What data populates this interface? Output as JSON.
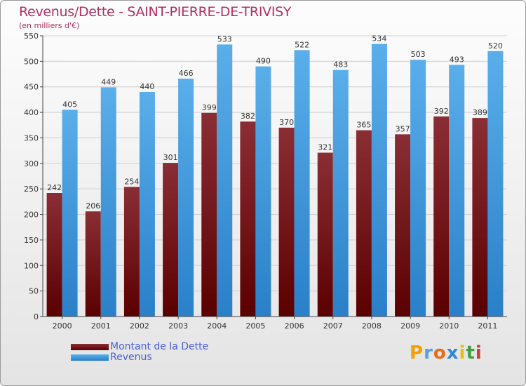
{
  "header": {
    "title": "Revenus/Dette - SAINT-PIERRE-DE-TRIVISY",
    "subtitle": "(en milliers d'€)"
  },
  "colors": {
    "debt_top": "#8a2e35",
    "debt_bottom": "#5a0000",
    "revenue_top": "#5aaeea",
    "revenue_bottom": "#2a80c8",
    "title": "#b03060",
    "legend_text": "#4a5fd4"
  },
  "legend": {
    "debt_label": "Montant de la Dette",
    "revenue_label": "Revenus"
  },
  "logo": {
    "letters": [
      "P",
      "r",
      "o",
      "x",
      "i",
      "t",
      "i"
    ],
    "colors": [
      "#f0a000",
      "#5aa0d8",
      "#e86b1a",
      "#2e8ad8",
      "#e8c000",
      "#3fa040",
      "#d83a30"
    ]
  },
  "chart_data": {
    "type": "bar",
    "title": "Revenus/Dette - SAINT-PIERRE-DE-TRIVISY",
    "ylabel": "(en milliers d'€)",
    "xlabel": "",
    "ylim": [
      0,
      550
    ],
    "yticks": [
      0,
      50,
      100,
      150,
      200,
      250,
      300,
      350,
      400,
      450,
      500,
      550
    ],
    "grid": true,
    "legend_position": "bottom-left",
    "categories": [
      "2000",
      "2001",
      "2002",
      "2003",
      "2004",
      "2005",
      "2006",
      "2007",
      "2008",
      "2009",
      "2010",
      "2011"
    ],
    "series": [
      {
        "name": "Montant de la Dette",
        "values": [
          242,
          206,
          254,
          301,
          399,
          382,
          370,
          321,
          365,
          357,
          392,
          389
        ]
      },
      {
        "name": "Revenus",
        "values": [
          405,
          449,
          440,
          466,
          533,
          490,
          522,
          483,
          534,
          503,
          493,
          520
        ]
      }
    ]
  }
}
